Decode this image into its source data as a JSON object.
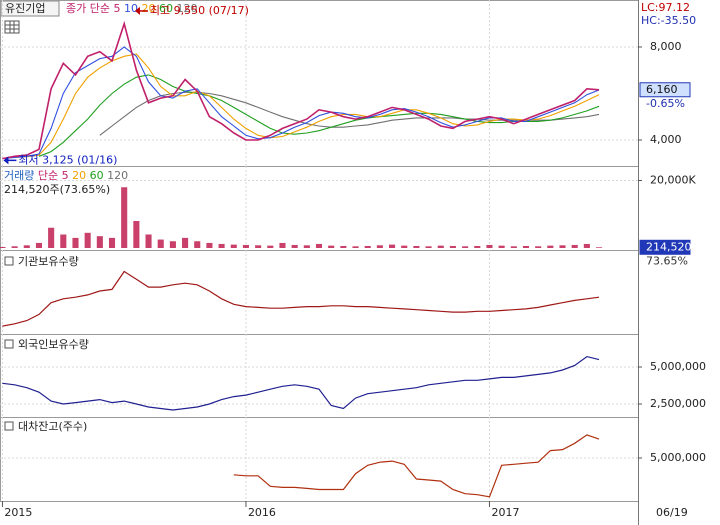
{
  "title": "유진기업",
  "lc": "LC:97.12",
  "hc": "HC:-35.50",
  "chart_data": {
    "type": "stock",
    "x": [
      2015.0,
      2015.05,
      2015.1,
      2015.15,
      2015.2,
      2015.25,
      2015.3,
      2015.35,
      2015.4,
      2015.45,
      2015.5,
      2015.55,
      2015.6,
      2015.65,
      2015.7,
      2015.75,
      2015.8,
      2015.85,
      2015.9,
      2015.95,
      2016.0,
      2016.05,
      2016.1,
      2016.15,
      2016.2,
      2016.25,
      2016.3,
      2016.35,
      2016.4,
      2016.45,
      2016.5,
      2016.55,
      2016.6,
      2016.65,
      2016.7,
      2016.75,
      2016.8,
      2016.85,
      2016.9,
      2016.95,
      2017.0,
      2017.05,
      2017.1,
      2017.15,
      2017.2,
      2017.25,
      2017.3,
      2017.35,
      2017.4,
      2017.45
    ],
    "xlim": [
      2014.99,
      2017.61
    ],
    "xticks": [
      2015,
      2016,
      2017
    ],
    "last_date": "06/19",
    "panes": [
      {
        "type": "line",
        "ma_type": "종가 단순",
        "series": [
          {
            "name": "5",
            "color": "#c0206a",
            "values": [
              3200,
              3300,
              3350,
              3600,
              6200,
              7300,
              6800,
              7600,
              7800,
              7400,
              9000,
              7000,
              5600,
              5800,
              5900,
              6600,
              6100,
              5000,
              4700,
              4300,
              4000,
              4000,
              4200,
              4500,
              4700,
              4900,
              5300,
              5200,
              5000,
              4900,
              5000,
              5200,
              5400,
              5300,
              5100,
              4900,
              4600,
              4500,
              4800,
              4900,
              5000,
              4900,
              4700,
              4900,
              5100,
              5300,
              5500,
              5700,
              6200,
              6160
            ]
          },
          {
            "name": "10",
            "color": "#3050e0",
            "values": [
              3200,
              3250,
              3300,
              3400,
              4500,
              6000,
              6900,
              7200,
              7500,
              7600,
              8000,
              7600,
              6500,
              5900,
              5800,
              6100,
              6200,
              5600,
              5000,
              4600,
              4200,
              4050,
              4100,
              4300,
              4550,
              4750,
              5050,
              5200,
              5150,
              5000,
              4950,
              5100,
              5300,
              5350,
              5200,
              5000,
              4750,
              4550,
              4650,
              4800,
              4950,
              4950,
              4800,
              4800,
              5000,
              5200,
              5400,
              5600,
              5950,
              6150
            ]
          },
          {
            "name": "20",
            "color": "#f0a000",
            "values": [
              null,
              3250,
              3280,
              3350,
              3900,
              4900,
              6000,
              6700,
              7100,
              7400,
              7600,
              7700,
              7100,
              6300,
              5900,
              5900,
              6100,
              5900,
              5400,
              4900,
              4500,
              4200,
              4100,
              4150,
              4350,
              4550,
              4800,
              5000,
              5100,
              5100,
              5000,
              5000,
              5150,
              5300,
              5300,
              5150,
              4950,
              4700,
              4600,
              4650,
              4800,
              4900,
              4900,
              4850,
              4900,
              5050,
              5250,
              5450,
              5700,
              5950
            ]
          },
          {
            "name": "60",
            "color": "#20a020",
            "values": [
              null,
              null,
              null,
              3300,
              3500,
              3900,
              4400,
              4900,
              5500,
              6000,
              6400,
              6700,
              6800,
              6600,
              6300,
              6100,
              6000,
              5900,
              5700,
              5400,
              5100,
              4800,
              4500,
              4300,
              4250,
              4300,
              4400,
              4550,
              4700,
              4850,
              4950,
              5000,
              5050,
              5100,
              5150,
              5150,
              5100,
              5000,
              4900,
              4800,
              4750,
              4750,
              4800,
              4800,
              4800,
              4850,
              4950,
              5100,
              5250,
              5450
            ]
          },
          {
            "name": "120",
            "color": "#707070",
            "values": [
              null,
              null,
              null,
              null,
              null,
              null,
              null,
              null,
              4200,
              4600,
              5000,
              5400,
              5700,
              5900,
              6000,
              6050,
              6050,
              6000,
              5900,
              5750,
              5600,
              5400,
              5200,
              5000,
              4850,
              4700,
              4600,
              4550,
              4550,
              4600,
              4650,
              4750,
              4850,
              4900,
              4950,
              4950,
              4950,
              4950,
              4900,
              4900,
              4850,
              4850,
              4850,
              4850,
              4850,
              4850,
              4900,
              4950,
              5000,
              5100
            ]
          }
        ],
        "ylim": [
          2925,
          10020
        ],
        "yticks": [
          {
            "value": 8000,
            "label": "8,000"
          },
          {
            "value": 4000,
            "label": "4,000"
          }
        ],
        "last": {
          "value": 6160,
          "label": "6,160"
        },
        "change": {
          "value": -0.65,
          "label": "-0.65%"
        },
        "annotations": [
          {
            "text": "최고 9,550 (07/17)",
            "value": 9550,
            "x": 2015.54,
            "color": "#c00000"
          },
          {
            "text": "최저 3,125 (01/16)",
            "value": 3125,
            "x": 2015.0,
            "color": "#1020c0"
          }
        ]
      },
      {
        "type": "bar",
        "title": "거래량",
        "ma_type": "단순",
        "ma_names": [
          {
            "name": "5",
            "color": "#c0206a"
          },
          {
            "name": "20",
            "color": "#f0a000"
          },
          {
            "name": "60",
            "color": "#20a020"
          },
          {
            "name": "120",
            "color": "#707070"
          }
        ],
        "color": "#c02050",
        "values": [
          300000,
          500000,
          800000,
          1500000,
          6000000,
          4000000,
          3000000,
          4500000,
          3500000,
          3000000,
          18000000,
          8000000,
          4000000,
          2500000,
          2000000,
          3000000,
          2000000,
          1500000,
          1200000,
          1000000,
          900000,
          800000,
          700000,
          1500000,
          900000,
          800000,
          1200000,
          700000,
          600000,
          500000,
          600000,
          800000,
          1000000,
          700000,
          600000,
          500000,
          700000,
          600000,
          500000,
          600000,
          900000,
          700000,
          500000,
          600000,
          500000,
          700000,
          800000,
          900000,
          1200000,
          214520
        ],
        "ylim": [
          0,
          24000000
        ],
        "yticks": [
          {
            "value": 20000000,
            "label": "20,000K"
          }
        ],
        "summary": "214,520주(73.65%)",
        "last": {
          "value": 214520,
          "label": "214,520"
        },
        "ratio": {
          "value": 73.65,
          "label": "73.65%"
        }
      },
      {
        "type": "line",
        "title": "기관보유수량",
        "color": "#a01818",
        "values": [
          5,
          8,
          12,
          20,
          35,
          40,
          42,
          45,
          50,
          52,
          75,
          65,
          55,
          55,
          58,
          60,
          58,
          50,
          40,
          33,
          30,
          29,
          28,
          28,
          29,
          30,
          30,
          31,
          31,
          30,
          30,
          29,
          28,
          27,
          26,
          25,
          24,
          23,
          23,
          24,
          24,
          25,
          26,
          27,
          29,
          32,
          35,
          38,
          40,
          42
        ],
        "ylim": [
          0,
          100
        ],
        "yticks": []
      },
      {
        "type": "line",
        "title": "외국인보유수량",
        "color": "#202090",
        "values": [
          3900000,
          3800000,
          3600000,
          3300000,
          2700000,
          2500000,
          2600000,
          2700000,
          2800000,
          2600000,
          2700000,
          2500000,
          2300000,
          2200000,
          2100000,
          2200000,
          2300000,
          2500000,
          2800000,
          3000000,
          3100000,
          3300000,
          3500000,
          3700000,
          3800000,
          3700000,
          3500000,
          2400000,
          2200000,
          2900000,
          3200000,
          3300000,
          3400000,
          3500000,
          3600000,
          3800000,
          3900000,
          4000000,
          4100000,
          4100000,
          4200000,
          4300000,
          4300000,
          4400000,
          4500000,
          4600000,
          4800000,
          5100000,
          5700000,
          5500000
        ],
        "ylim": [
          1760000,
          7160000
        ],
        "yticks": [
          {
            "value": 5000000,
            "label": "5,000,000"
          },
          {
            "value": 2500000,
            "label": "2,500,000"
          }
        ]
      },
      {
        "type": "line",
        "title": "대차잔고(주수)",
        "color": "#b03010",
        "values": [
          null,
          null,
          null,
          null,
          null,
          null,
          null,
          null,
          null,
          null,
          null,
          null,
          null,
          null,
          null,
          null,
          null,
          null,
          null,
          3400000,
          3300000,
          3300000,
          2300000,
          2200000,
          2200000,
          2100000,
          2000000,
          2000000,
          2000000,
          3500000,
          4300000,
          4600000,
          4700000,
          4400000,
          3000000,
          2900000,
          2800000,
          2000000,
          1600000,
          1500000,
          1300000,
          4300000,
          4400000,
          4500000,
          4600000,
          5700000,
          5800000,
          6400000,
          7200000,
          6800000
        ],
        "ylim": [
          1000000,
          8900000
        ],
        "yticks": [
          {
            "value": 5000000,
            "label": "5,000,000"
          }
        ]
      }
    ]
  }
}
